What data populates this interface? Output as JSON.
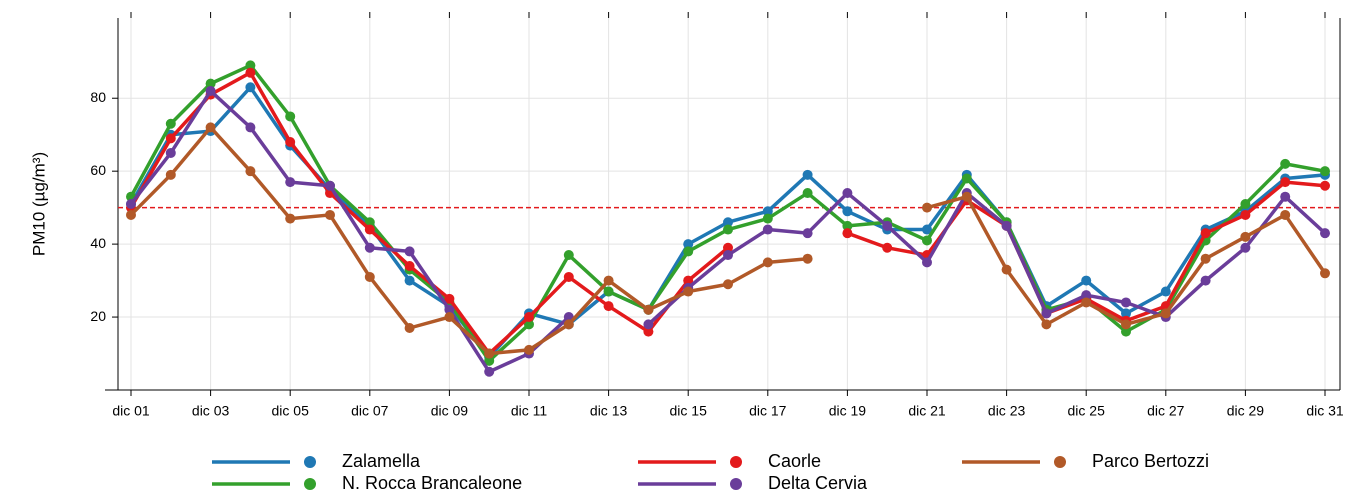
{
  "chart_data": {
    "type": "line",
    "ylabel": "PM10 (µg/m³)",
    "categories": [
      "dic 01",
      null,
      "dic 03",
      null,
      "dic 05",
      null,
      "dic 07",
      null,
      "dic 09",
      null,
      "dic 11",
      null,
      "dic 13",
      null,
      "dic 15",
      null,
      "dic 17",
      null,
      "dic 19",
      null,
      "dic 21",
      null,
      "dic 23",
      null,
      "dic 25",
      null,
      "dic 27",
      null,
      "dic 29",
      null,
      "dic 31"
    ],
    "ylim": [
      0,
      102
    ],
    "yticks": [
      20,
      40,
      60,
      80
    ],
    "grid": true,
    "threshold": 50,
    "threshold_color": "#e31a1c",
    "series": [
      {
        "name": "Zalamella",
        "color": "#1f78b4",
        "values": [
          51,
          70,
          71,
          83,
          67,
          55,
          45,
          30,
          23,
          9,
          21,
          18,
          27,
          22,
          40,
          46,
          49,
          59,
          49,
          44,
          44,
          59,
          46,
          23,
          30,
          21,
          27,
          44,
          49,
          58,
          59
        ]
      },
      {
        "name": "N. Rocca Brancaleone",
        "color": "#33a02c",
        "values": [
          53,
          73,
          84,
          89,
          75,
          56,
          46,
          33,
          24,
          8,
          18,
          37,
          27,
          22,
          38,
          44,
          47,
          54,
          45,
          46,
          41,
          58,
          46,
          22,
          25,
          16,
          22,
          41,
          51,
          62,
          60
        ]
      },
      {
        "name": "Caorle",
        "color": "#e31a1c",
        "values": [
          50,
          69,
          81,
          87,
          68,
          54,
          44,
          34,
          25,
          10,
          20,
          31,
          23,
          16,
          30,
          39,
          null,
          null,
          43,
          39,
          37,
          52,
          45,
          21,
          25,
          19,
          23,
          43,
          48,
          57,
          56
        ]
      },
      {
        "name": "Delta Cervia",
        "color": "#6a3d9a",
        "values": [
          51,
          65,
          82,
          72,
          57,
          56,
          39,
          38,
          22,
          5,
          10,
          20,
          null,
          18,
          28,
          37,
          44,
          43,
          54,
          45,
          35,
          54,
          45,
          21,
          26,
          24,
          20,
          30,
          39,
          53,
          43
        ]
      },
      {
        "name": "Parco Bertozzi",
        "color": "#b15928",
        "values": [
          48,
          59,
          72,
          60,
          47,
          48,
          31,
          17,
          20,
          10,
          11,
          18,
          30,
          22,
          27,
          29,
          35,
          36,
          null,
          null,
          50,
          53,
          33,
          18,
          24,
          18,
          21,
          36,
          42,
          48,
          32
        ]
      }
    ]
  }
}
